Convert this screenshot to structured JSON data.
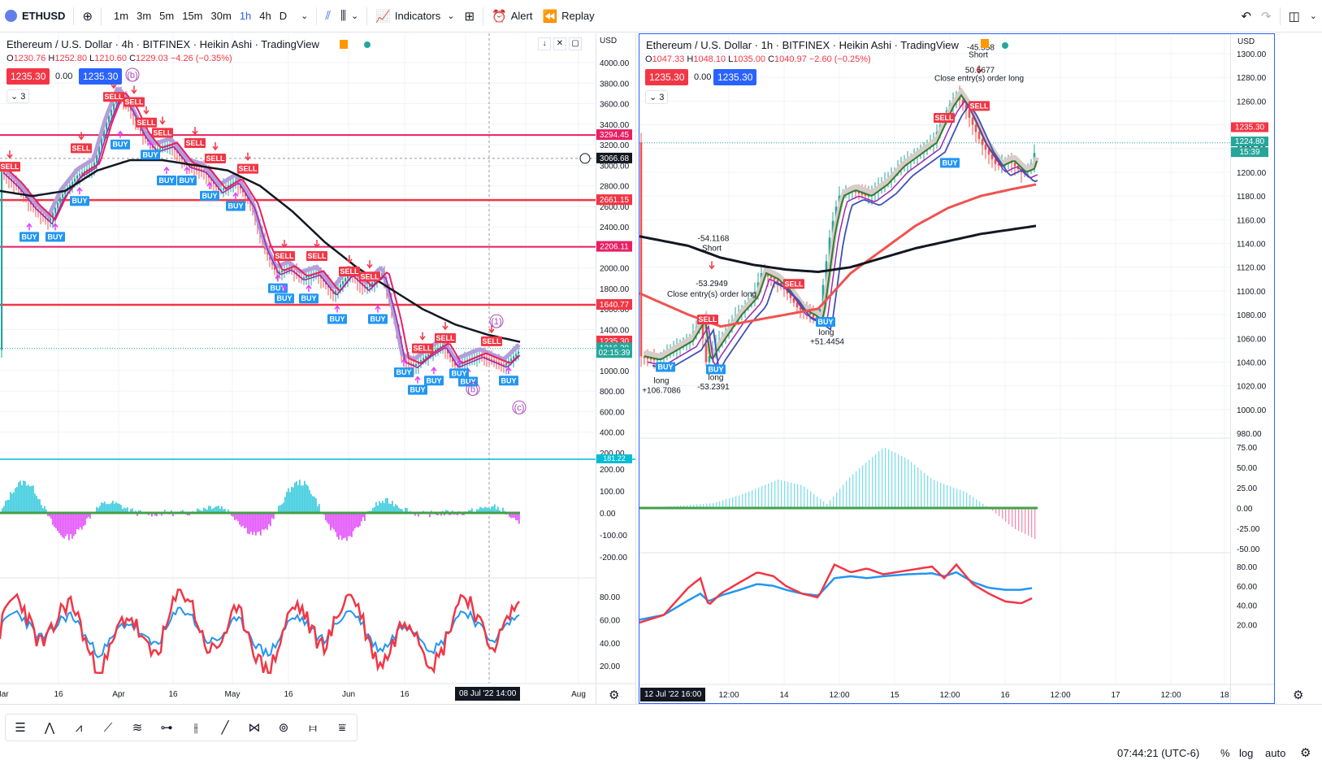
{
  "toolbar": {
    "symbol": "ETHUSD",
    "timeframes": [
      "1m",
      "3m",
      "5m",
      "15m",
      "30m",
      "1h",
      "4h",
      "D"
    ],
    "active_timeframe": "1h",
    "indicators_label": "Indicators",
    "alert_label": "Alert",
    "replay_label": "Replay"
  },
  "left_chart": {
    "title": "Ethereum / U.S. Dollar · 4h · BITFINEX · Heikin Ashi · TradingView",
    "ohlc": {
      "o": "1230.76",
      "h": "1252.80",
      "l": "1210.60",
      "c": "1229.03",
      "chg": "−4.26 (−0.35%)"
    },
    "bid": "1235.30",
    "spread": "0.00",
    "ask": "1235.30",
    "layers": "3",
    "currency": "USD",
    "price_ticks": [
      "4000.00",
      "3800.00",
      "3600.00",
      "3400.00",
      "3200.00",
      "3000.00",
      "2800.00",
      "2600.00",
      "2400.00",
      "2200.00",
      "2000.00",
      "1800.00",
      "1600.00",
      "1400.00",
      "1200.00",
      "1000.00",
      "800.00",
      "600.00",
      "400.00",
      "200.00"
    ],
    "level_labels": [
      {
        "text": "3294.45",
        "color": "#e91e63"
      },
      {
        "text": "3066.68",
        "color": "#131722"
      },
      {
        "text": "2661.15",
        "color": "#f23645"
      },
      {
        "text": "2206.11",
        "color": "#e91e63"
      },
      {
        "text": "1640.77",
        "color": "#f23645"
      },
      {
        "text": "1235.30",
        "color": "#f23645"
      },
      {
        "text": "1216.30",
        "color": "#26a69a"
      },
      {
        "text": "02:15:39",
        "color": "#26a69a"
      }
    ],
    "cyan_label": "181.22",
    "osc_ticks": [
      "200.00",
      "100.00",
      "0.00",
      "-100.00",
      "-200.00"
    ],
    "rsi_ticks": [
      "80.00",
      "60.00",
      "40.00",
      "20.00"
    ],
    "time_labels": [
      "Mar",
      "16",
      "Apr",
      "16",
      "May",
      "16",
      "Jun",
      "16",
      "Aug"
    ],
    "crosshair_time": "08 Jul '22   14:00",
    "wave_labels": [
      "(b)",
      "(1)",
      "(b)",
      "(c)"
    ]
  },
  "right_chart": {
    "title": "Ethereum / U.S. Dollar · 1h · BITFINEX · Heikin Ashi · TradingView",
    "ohlc": {
      "o": "1047.33",
      "h": "1048.10",
      "l": "1035.00",
      "c": "1040.97",
      "chg": "−2.60 (−0.25%)"
    },
    "bid": "1235.30",
    "spread": "0.00",
    "ask": "1235.30",
    "layers": "3",
    "currency": "USD",
    "price_ticks": [
      "1300.00",
      "1280.00",
      "1260.00",
      "1240.00",
      "1220.00",
      "1200.00",
      "1180.00",
      "1160.00",
      "1140.00",
      "1120.00",
      "1100.00",
      "1080.00",
      "1060.00",
      "1040.00",
      "1020.00",
      "1000.00",
      "980.00"
    ],
    "price_labels": [
      {
        "text": "1235.30",
        "color": "#f23645"
      },
      {
        "text": "1224.80",
        "color": "#26a69a"
      },
      {
        "text": "15:39",
        "color": "#26a69a"
      }
    ],
    "osc_ticks": [
      "75.00",
      "50.00",
      "25.00",
      "0.00",
      "-25.00",
      "-50.00"
    ],
    "rsi_ticks": [
      "80.00",
      "60.00",
      "40.00",
      "20.00"
    ],
    "time_labels": [
      "12:00",
      "14",
      "12:00",
      "15",
      "12:00",
      "16",
      "12:00",
      "17",
      "12:00",
      "18"
    ],
    "start_time": "12 Jul '22   16:00",
    "annotations": [
      {
        "text": "long"
      },
      {
        "text": "+106.7086"
      },
      {
        "text": "long"
      },
      {
        "text": "-53.2391"
      },
      {
        "text": "-54.1168"
      },
      {
        "text": "Short"
      },
      {
        "text": "-53.2949"
      },
      {
        "text": "Close entry(s) order long"
      },
      {
        "text": "long"
      },
      {
        "text": "+51.4454"
      },
      {
        "text": "50.5677"
      },
      {
        "text": "Close entry(s) order long"
      },
      {
        "text": "-45.558"
      },
      {
        "text": "Short"
      }
    ]
  },
  "status": {
    "time": "07:44:21 (UTC-6)",
    "percent": "%",
    "log": "log",
    "auto": "auto"
  },
  "signals": {
    "buy": "BUY",
    "sell": "SELL"
  }
}
